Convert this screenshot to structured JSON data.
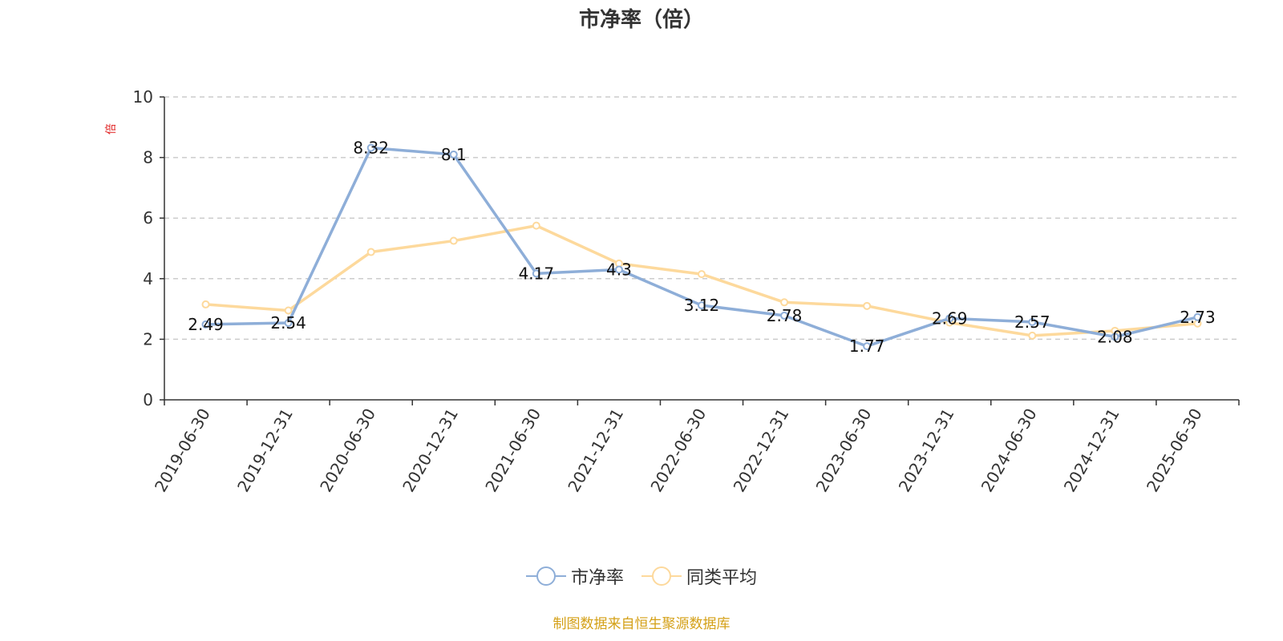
{
  "chart_data": {
    "type": "line",
    "title": "市净率（倍）",
    "ylabel": "倍",
    "xlabel": "",
    "ylim": [
      0,
      10
    ],
    "yticks": [
      0,
      2,
      4,
      6,
      8,
      10
    ],
    "grid": true,
    "legend_position": "bottom",
    "categories": [
      "2019-06-30",
      "2019-12-31",
      "2020-06-30",
      "2020-12-31",
      "2021-06-30",
      "2021-12-31",
      "2022-06-30",
      "2022-12-31",
      "2023-06-30",
      "2023-12-31",
      "2024-06-30",
      "2024-12-31",
      "2025-06-30"
    ],
    "series": [
      {
        "name": "市净率",
        "color": "#8eaed8",
        "values": [
          2.49,
          2.54,
          8.32,
          8.1,
          4.17,
          4.3,
          3.12,
          2.78,
          1.77,
          2.69,
          2.57,
          2.08,
          2.73
        ],
        "show_labels": true
      },
      {
        "name": "同类平均",
        "color": "#fdd99c",
        "values": [
          3.15,
          2.95,
          4.88,
          5.25,
          5.75,
          4.5,
          4.15,
          3.22,
          3.1,
          2.55,
          2.12,
          2.28,
          2.52
        ],
        "show_labels": false
      }
    ]
  },
  "source_note": "制图数据来自恒生聚源数据库"
}
